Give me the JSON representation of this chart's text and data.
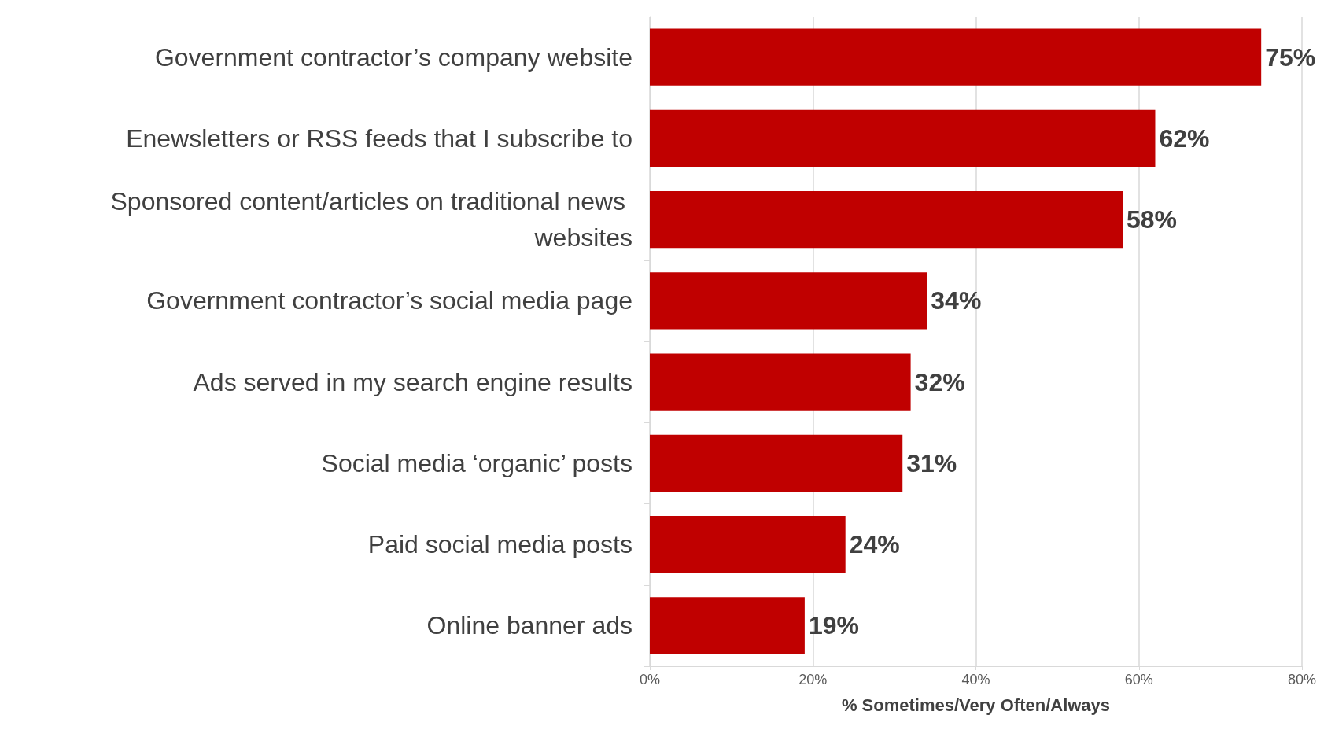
{
  "chart_data": {
    "type": "bar",
    "orientation": "horizontal",
    "xlabel": "% Sometimes/Very Often/Always",
    "categories": [
      "Government contractor’s company website",
      "Enewsletters or RSS feeds that I subscribe to",
      "Sponsored content/articles on traditional news websites",
      "Government contractor’s social media page",
      "Ads served in my search engine results",
      "Social media ‘organic’ posts",
      "Paid social media posts",
      "Online banner ads"
    ],
    "values": [
      75,
      62,
      58,
      34,
      32,
      31,
      24,
      19
    ],
    "value_labels": [
      "75%",
      "62%",
      "58%",
      "34%",
      "32%",
      "31%",
      "24%",
      "19%"
    ],
    "color": "#c00000",
    "xlim": [
      0,
      80
    ],
    "xticks": [
      {
        "value": 0,
        "label": "0%"
      },
      {
        "value": 20,
        "label": "20%"
      },
      {
        "value": 40,
        "label": "40%"
      },
      {
        "value": 60,
        "label": "60%"
      },
      {
        "value": 80,
        "label": "80%"
      }
    ],
    "grid": "x"
  }
}
